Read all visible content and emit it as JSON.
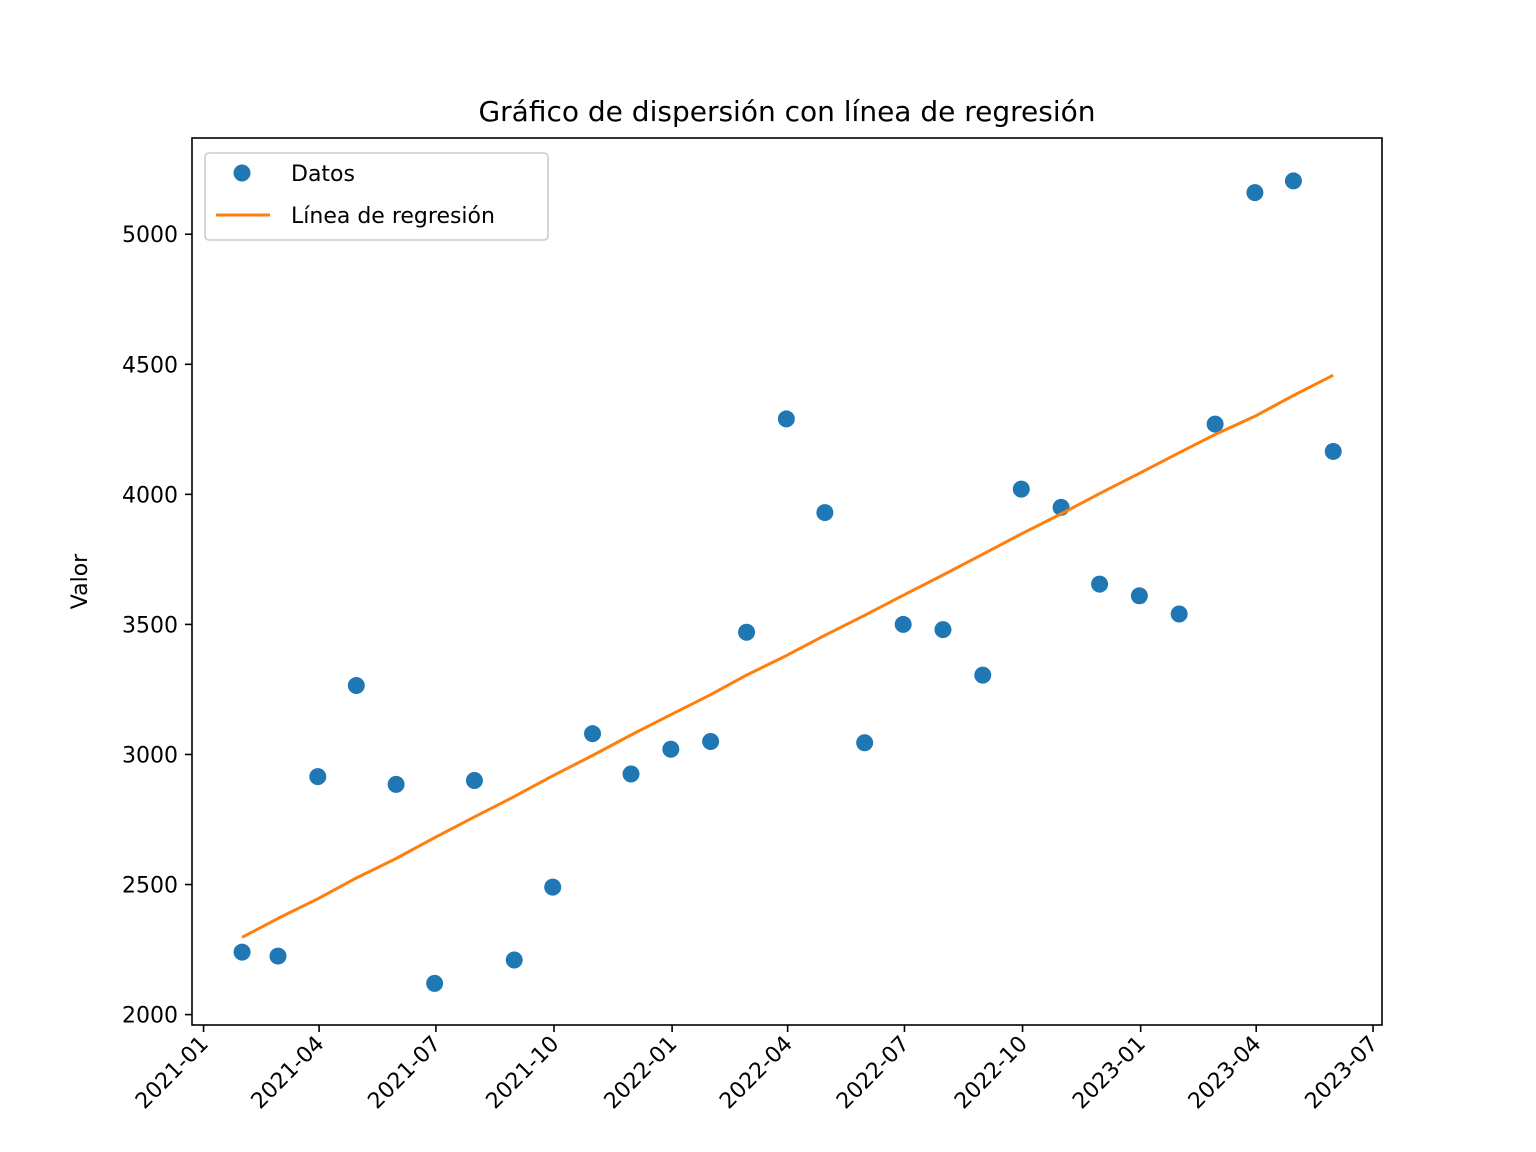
{
  "chart_data": {
    "type": "scatter",
    "title": "Gráfico de dispersión con línea de regresión",
    "xlabel": "",
    "ylabel": "Valor",
    "xlim": [
      "2020-12-23",
      "2023-07-08"
    ],
    "ylim": [
      1960,
      5370
    ],
    "x_ticks": [
      "2021-01",
      "2021-04",
      "2021-07",
      "2021-10",
      "2022-01",
      "2022-04",
      "2022-07",
      "2022-10",
      "2023-01",
      "2023-04",
      "2023-07"
    ],
    "x_tick_dates": [
      "2021-01-01",
      "2021-04-01",
      "2021-07-01",
      "2021-10-01",
      "2022-01-01",
      "2022-04-01",
      "2022-07-01",
      "2022-10-01",
      "2023-01-01",
      "2023-04-01",
      "2023-07-01"
    ],
    "y_ticks": [
      2000,
      2500,
      3000,
      3500,
      4000,
      4500,
      5000
    ],
    "grid": false,
    "legend_position": "top-left",
    "colors": {
      "scatter": "#1f77b4",
      "line": "#ff7f0e"
    },
    "series": [
      {
        "name": "Datos",
        "kind": "scatter",
        "x": [
          "2021-01-31",
          "2021-02-28",
          "2021-03-31",
          "2021-04-30",
          "2021-05-31",
          "2021-06-30",
          "2021-07-31",
          "2021-08-31",
          "2021-09-30",
          "2021-10-31",
          "2021-11-30",
          "2021-12-31",
          "2022-01-31",
          "2022-02-28",
          "2022-03-31",
          "2022-04-30",
          "2022-05-31",
          "2022-06-30",
          "2022-07-31",
          "2022-08-31",
          "2022-09-30",
          "2022-10-31",
          "2022-11-30",
          "2022-12-31",
          "2023-01-31",
          "2023-02-28",
          "2023-03-31",
          "2023-04-30",
          "2023-05-31"
        ],
        "y": [
          2240,
          2225,
          2915,
          3265,
          2885,
          2120,
          2900,
          2210,
          2490,
          3080,
          2925,
          3020,
          3050,
          3470,
          4290,
          3930,
          3045,
          3500,
          3480,
          3305,
          4020,
          3950,
          3655,
          3610,
          3540,
          4270,
          5160,
          5205,
          4165
        ]
      },
      {
        "name": "Línea de regresión",
        "kind": "line",
        "x": [
          "2021-01-31",
          "2021-02-28",
          "2021-03-31",
          "2021-04-30",
          "2021-05-31",
          "2021-06-30",
          "2021-07-31",
          "2021-08-31",
          "2021-09-30",
          "2021-10-31",
          "2021-11-30",
          "2021-12-31",
          "2022-01-31",
          "2022-02-28",
          "2022-03-31",
          "2022-04-30",
          "2022-05-31",
          "2022-06-30",
          "2022-07-31",
          "2022-08-31",
          "2022-09-30",
          "2022-10-31",
          "2022-11-30",
          "2022-12-31",
          "2023-01-31",
          "2023-02-28",
          "2023-03-31",
          "2023-04-30",
          "2023-05-31"
        ],
        "y": [
          2297,
          2370,
          2445,
          2525,
          2600,
          2680,
          2760,
          2838,
          2918,
          2996,
          3075,
          3153,
          3230,
          3305,
          3380,
          3458,
          3535,
          3612,
          3690,
          3770,
          3848,
          3925,
          4003,
          4081,
          4160,
          4230,
          4300,
          4380,
          4458
        ]
      }
    ]
  }
}
